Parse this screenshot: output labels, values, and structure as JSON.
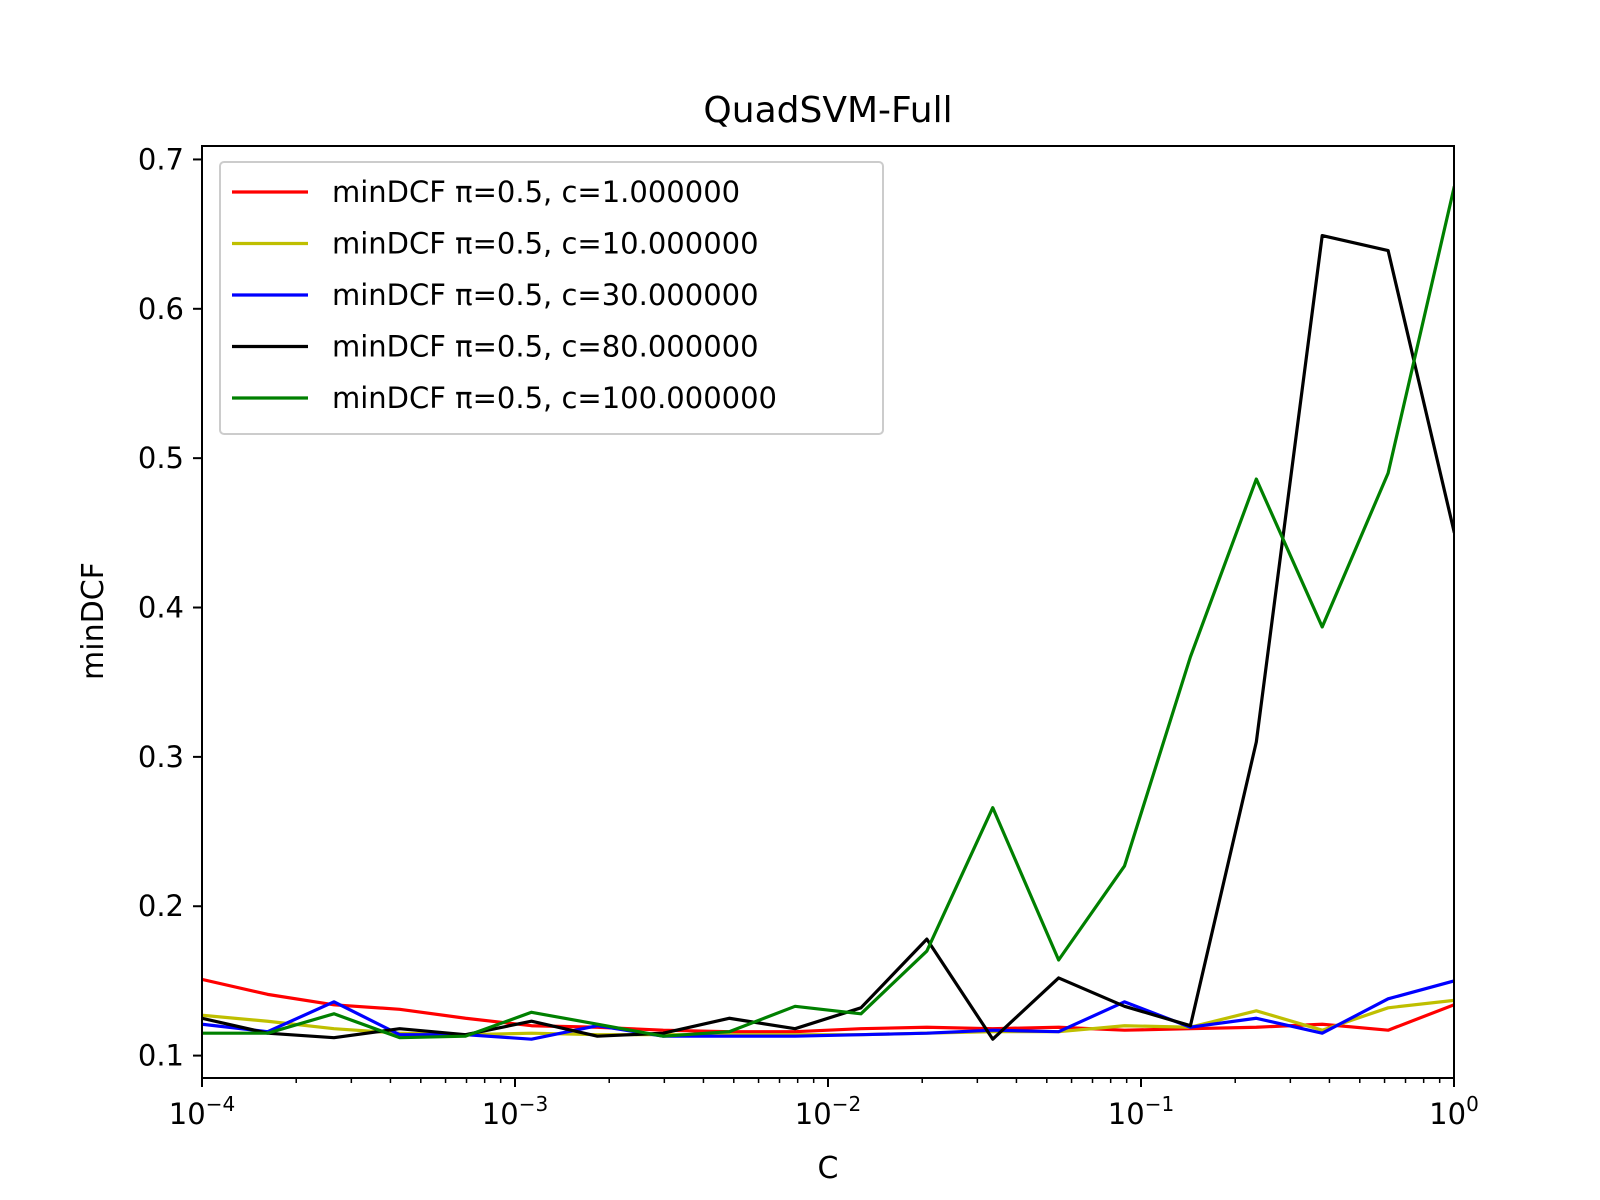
{
  "chart_data": {
    "type": "line",
    "title": "QuadSVM-Full",
    "xlabel": "C",
    "ylabel": "minDCF",
    "x_scale": "log",
    "xlim": [
      0.0001,
      1
    ],
    "ylim": [
      0.085,
      0.709
    ],
    "x_ticks": [
      {
        "value": 0.0001,
        "base": "10",
        "exp": "−4"
      },
      {
        "value": 0.001,
        "base": "10",
        "exp": "−3"
      },
      {
        "value": 0.01,
        "base": "10",
        "exp": "−2"
      },
      {
        "value": 0.1,
        "base": "10",
        "exp": "−1"
      },
      {
        "value": 1,
        "base": "10",
        "exp": "0"
      }
    ],
    "y_ticks": [
      {
        "value": 0.1,
        "label": "0.1"
      },
      {
        "value": 0.2,
        "label": "0.2"
      },
      {
        "value": 0.3,
        "label": "0.3"
      },
      {
        "value": 0.4,
        "label": "0.4"
      },
      {
        "value": 0.5,
        "label": "0.5"
      },
      {
        "value": 0.6,
        "label": "0.6"
      },
      {
        "value": 0.7,
        "label": "0.7"
      }
    ],
    "grid": false,
    "legend_position": "top-left",
    "x": [
      0.0001,
      0.000162,
      0.000264,
      0.000428,
      0.000695,
      0.001129,
      0.001833,
      0.002976,
      0.004833,
      0.007848,
      0.012743,
      0.020691,
      0.033598,
      0.054556,
      0.088587,
      0.143845,
      0.233572,
      0.379269,
      0.615848,
      1.0
    ],
    "series": [
      {
        "name": "minDCF π=0.5, c=1.000000",
        "color": "#ff0000",
        "values": [
          0.151,
          0.141,
          0.134,
          0.131,
          0.125,
          0.12,
          0.119,
          0.117,
          0.116,
          0.116,
          0.118,
          0.119,
          0.118,
          0.119,
          0.117,
          0.118,
          0.119,
          0.121,
          0.117,
          0.134
        ]
      },
      {
        "name": "minDCF π=0.5, c=10.000000",
        "color": "#bfbf00",
        "values": [
          0.127,
          0.123,
          0.118,
          0.115,
          0.114,
          0.115,
          0.114,
          0.114,
          0.114,
          0.114,
          0.114,
          0.115,
          0.116,
          0.116,
          0.12,
          0.119,
          0.13,
          0.117,
          0.132,
          0.137
        ]
      },
      {
        "name": "minDCF π=0.5, c=30.000000",
        "color": "#0000ff",
        "values": [
          0.121,
          0.116,
          0.136,
          0.114,
          0.114,
          0.111,
          0.12,
          0.113,
          0.113,
          0.113,
          0.114,
          0.115,
          0.117,
          0.116,
          0.136,
          0.119,
          0.125,
          0.115,
          0.138,
          0.15
        ]
      },
      {
        "name": "minDCF π=0.5, c=80.000000",
        "color": "#000000",
        "values": [
          0.125,
          0.115,
          0.112,
          0.118,
          0.114,
          0.123,
          0.113,
          0.115,
          0.125,
          0.118,
          0.132,
          0.178,
          0.111,
          0.152,
          0.133,
          0.12,
          0.31,
          0.649,
          0.639,
          0.451
        ]
      },
      {
        "name": "minDCF π=0.5, c=100.000000",
        "color": "#008000",
        "values": [
          0.115,
          0.115,
          0.128,
          0.112,
          0.113,
          0.129,
          0.121,
          0.113,
          0.116,
          0.133,
          0.128,
          0.17,
          0.266,
          0.164,
          0.227,
          0.367,
          0.486,
          0.387,
          0.49,
          0.681
        ]
      }
    ]
  }
}
